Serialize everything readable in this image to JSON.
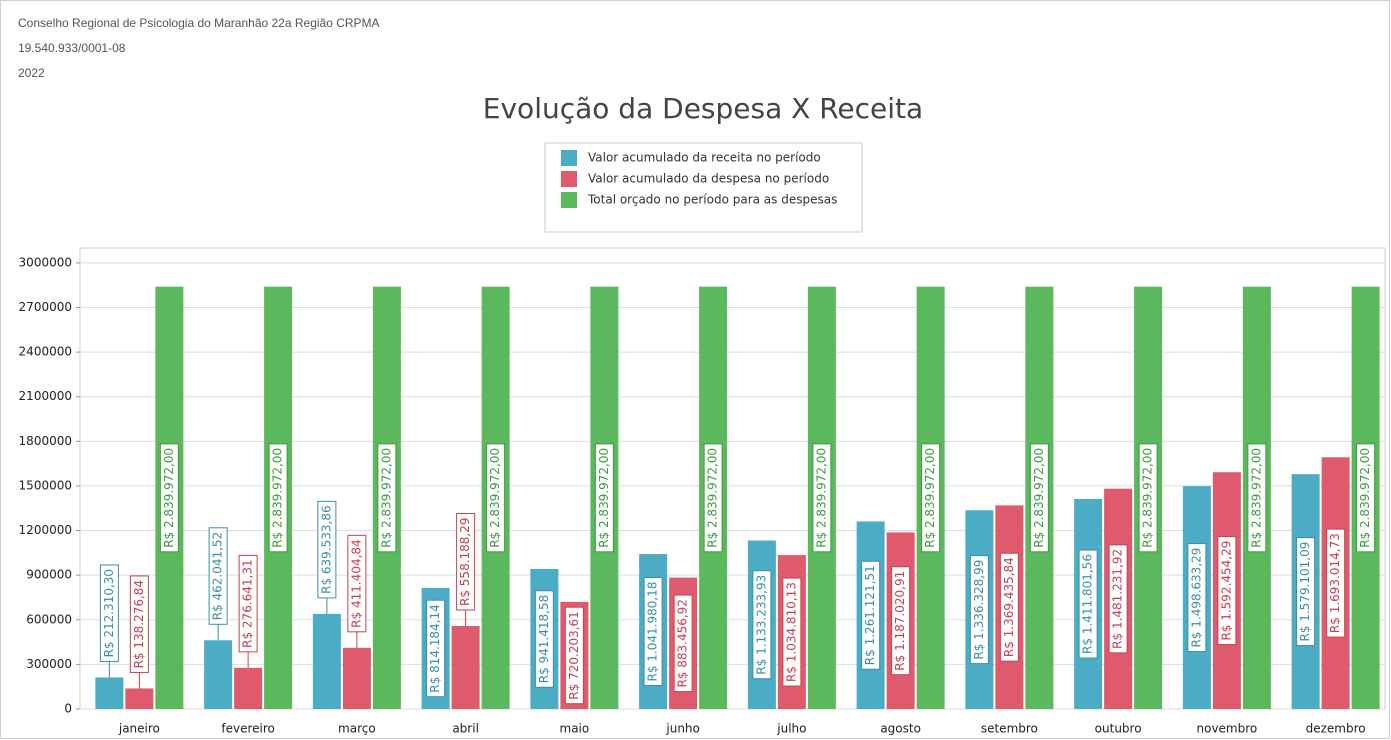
{
  "header": {
    "organization": "Conselho Regional de Psicologia do Maranhão 22a Região CRPMA",
    "cnpj": "19.540.933/0001-08",
    "year": "2022"
  },
  "chart_data": {
    "type": "bar",
    "title": "Evolução da Despesa X Receita",
    "categories": [
      "janeiro",
      "fevereiro",
      "março",
      "abril",
      "maio",
      "junho",
      "julho",
      "agosto",
      "setembro",
      "outubro",
      "novembro",
      "dezembro"
    ],
    "series": [
      {
        "name": "Valor acumulado da receita no período",
        "color": "#4bacc6",
        "label_color": "#3b8fa8",
        "values": [
          212310.3,
          462041.52,
          639533.86,
          814184.14,
          941418.58,
          1041980.18,
          1133233.93,
          1261121.51,
          1336328.99,
          1411801.56,
          1498633.29,
          1579101.09
        ],
        "value_labels": [
          "R$ 212.310,30",
          "R$ 462.041,52",
          "R$ 639.533,86",
          "R$ 814.184,14",
          "R$ 941.418,58",
          "R$ 1.041.980,18",
          "R$ 1.133.233,93",
          "R$ 1.261.121,51",
          "R$ 1.336.328,99",
          "R$ 1.411.801,56",
          "R$ 1.498.633,29",
          "R$ 1.579.101,09"
        ]
      },
      {
        "name": "Valor acumulado da despesa no período",
        "color": "#e05a6e",
        "label_color": "#c9404f",
        "values": [
          138276.84,
          276641.31,
          411404.84,
          558188.29,
          720203.61,
          883456.92,
          1034810.13,
          1187020.91,
          1369435.84,
          1481231.92,
          1592454.29,
          1693014.73
        ],
        "value_labels": [
          "R$ 138.276,84",
          "R$ 276.641,31",
          "R$ 411.404,84",
          "R$ 558.188,29",
          "R$ 720.203,61",
          "R$ 883.456,92",
          "R$ 1.034.810,13",
          "R$ 1.187.020,91",
          "R$ 1.369.435,84",
          "R$ 1.481.231,92",
          "R$ 1.592.454,29",
          "R$ 1.693.014,73"
        ]
      },
      {
        "name": "Total orçado no período para as despesas",
        "color": "#5cb85c",
        "label_color": "#3f9a3f",
        "values": [
          2839972,
          2839972,
          2839972,
          2839972,
          2839972,
          2839972,
          2839972,
          2839972,
          2839972,
          2839972,
          2839972,
          2839972
        ],
        "value_labels": [
          "R$ 2.839.972,00",
          "R$ 2.839.972,00",
          "R$ 2.839.972,00",
          "R$ 2.839.972,00",
          "R$ 2.839.972,00",
          "R$ 2.839.972,00",
          "R$ 2.839.972,00",
          "R$ 2.839.972,00",
          "R$ 2.839.972,00",
          "R$ 2.839.972,00",
          "R$ 2.839.972,00",
          "R$ 2.839.972,00"
        ]
      }
    ],
    "ylim": [
      0,
      3100000
    ],
    "yticks": [
      0,
      300000,
      600000,
      900000,
      1200000,
      1500000,
      1800000,
      2100000,
      2400000,
      2700000,
      3000000
    ],
    "grid": true
  }
}
